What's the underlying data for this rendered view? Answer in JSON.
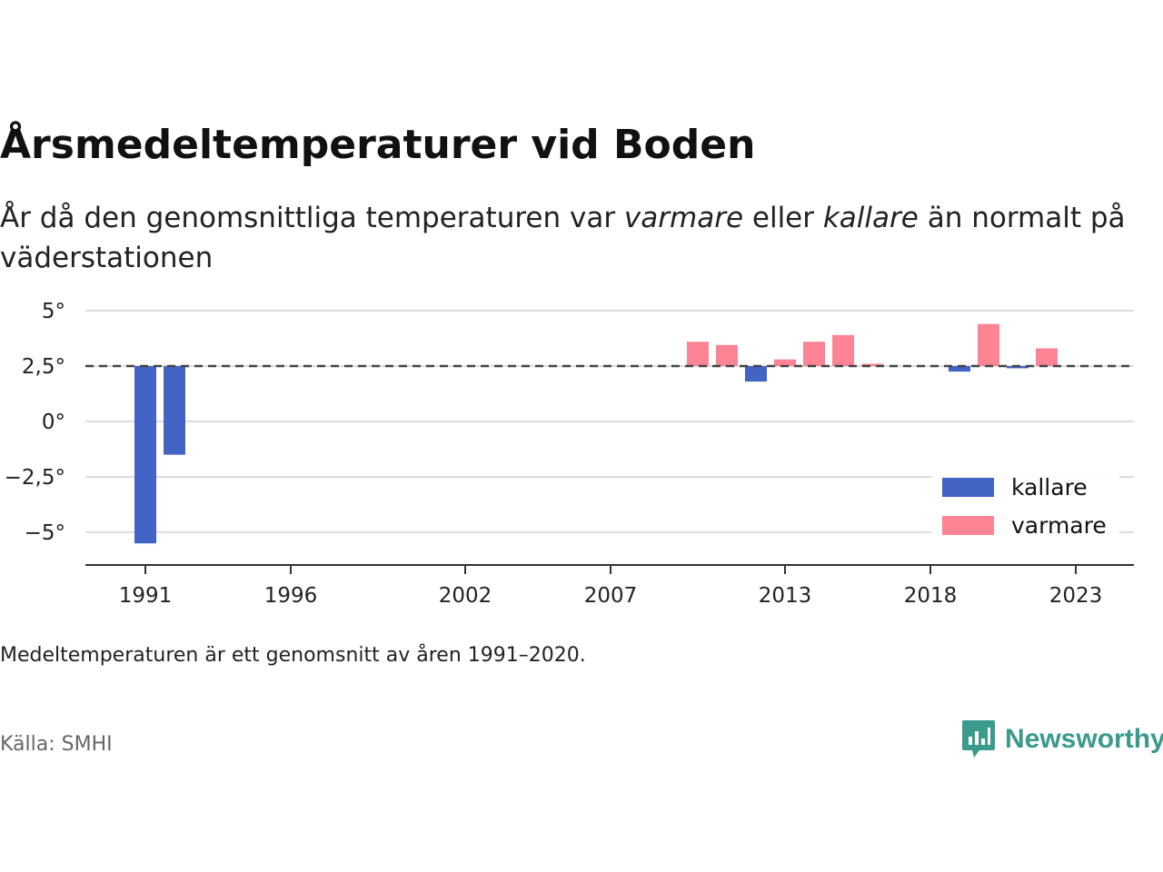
{
  "header": {
    "title": "Årsmedeltemperaturer vid Boden",
    "subtitle_before": "År då den genomsnittliga temperaturen var ",
    "subtitle_em1": "varmare",
    "subtitle_mid": " eller ",
    "subtitle_em2": "kallare",
    "subtitle_after": " än normalt på väderstationen"
  },
  "footer": {
    "note": "Medeltemperaturen är ett genomsnitt av åren 1991–2020.",
    "source": "Källa: SMHI",
    "brand": "Newsworthy",
    "brand_icon": "newsworthy-chat-bars-icon"
  },
  "colors": {
    "kallare": "#4264c4",
    "varmare": "#fd8494",
    "grid": "#dddddd",
    "reference_line": "#444444",
    "brand": "#3a9a8c"
  },
  "chart_data": {
    "type": "bar",
    "baseline": 2.5,
    "ylim": [
      -6,
      5.5
    ],
    "yticks": [
      {
        "value": 5,
        "label": "5°"
      },
      {
        "value": 2.5,
        "label": "2,5°"
      },
      {
        "value": 0,
        "label": "0°"
      },
      {
        "value": -2.5,
        "label": "−2,5°"
      },
      {
        "value": -5,
        "label": "−5°"
      }
    ],
    "xlim": [
      1989,
      2025
    ],
    "xticks": [
      {
        "value": 1991,
        "label": "1991"
      },
      {
        "value": 1996,
        "label": "1996"
      },
      {
        "value": 2002,
        "label": "2002"
      },
      {
        "value": 2007,
        "label": "2007"
      },
      {
        "value": 2013,
        "label": "2013"
      },
      {
        "value": 2018,
        "label": "2018"
      },
      {
        "value": 2023,
        "label": "2023"
      }
    ],
    "grid": true,
    "legend": {
      "position": "bottom-right",
      "items": [
        {
          "key": "kallare",
          "label": "kallare"
        },
        {
          "key": "varmare",
          "label": "varmare"
        }
      ]
    },
    "bars": [
      {
        "year": 1991,
        "value": -5.5
      },
      {
        "year": 1992,
        "value": -1.5
      },
      {
        "year": 2010,
        "value": 3.6
      },
      {
        "year": 2011,
        "value": 3.45
      },
      {
        "year": 2012,
        "value": 1.8
      },
      {
        "year": 2013,
        "value": 2.8
      },
      {
        "year": 2014,
        "value": 3.6
      },
      {
        "year": 2015,
        "value": 3.9
      },
      {
        "year": 2016,
        "value": 2.6
      },
      {
        "year": 2019,
        "value": 2.25
      },
      {
        "year": 2020,
        "value": 4.4
      },
      {
        "year": 2021,
        "value": 2.4
      },
      {
        "year": 2022,
        "value": 3.3
      }
    ]
  }
}
